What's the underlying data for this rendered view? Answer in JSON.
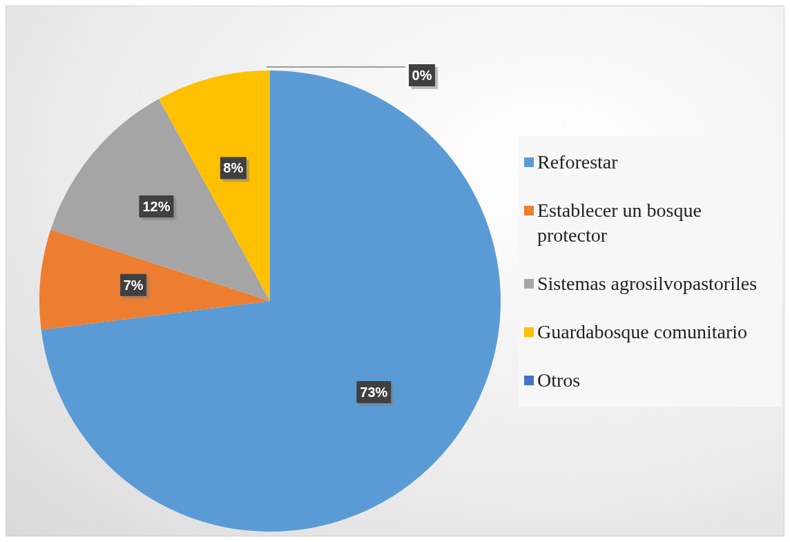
{
  "chart_data": {
    "type": "pie",
    "categories": [
      "Reforestar",
      "Establecer un bosque protector",
      "Sistemas agrosilvopastoriles",
      "Guardabosque comunitario",
      "Otros"
    ],
    "values": [
      73,
      7,
      12,
      8,
      0
    ],
    "colors": [
      "#5b9bd5",
      "#ed7d31",
      "#a5a5a5",
      "#ffc000",
      "#4472c4"
    ],
    "value_labels": [
      "73%",
      "7%",
      "12%",
      "8%",
      "0%"
    ],
    "legend": "right"
  }
}
